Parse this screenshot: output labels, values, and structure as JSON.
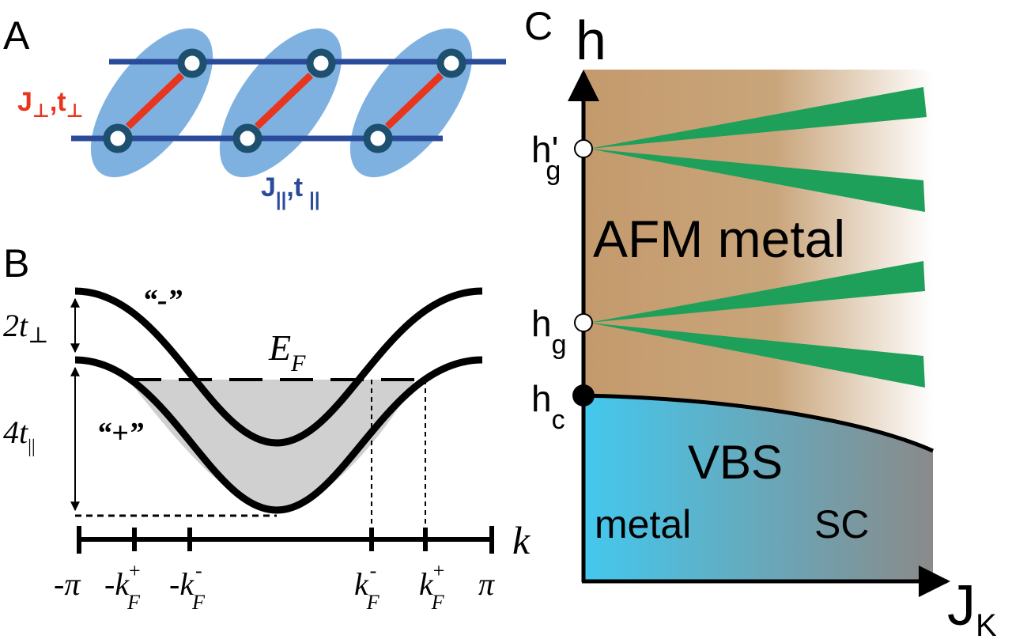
{
  "panels": {
    "a": {
      "label": "A",
      "perp_coupling": "J",
      "perp_coupling_sub": "⊥",
      "perp_hopping": ",t",
      "perp_hopping_sub": "⊥",
      "par_coupling": "J",
      "par_coupling_sub": "||",
      "par_hopping": ",t",
      "par_hopping_sub": "||",
      "colors": {
        "perp": "#e8351e",
        "par": "#2a4a9a",
        "ellipse": "#7fb1e0",
        "site": "#1d4f6e"
      }
    },
    "b": {
      "label": "B",
      "minus_band": "“-”",
      "plus_band": "“+”",
      "fermi_E": "E",
      "fermi_sub": "F",
      "gap": "2t",
      "gap_sub": "⊥",
      "width": "4t",
      "width_sub": "||",
      "axis_var": "k",
      "ticks": {
        "neg_pi": "-π",
        "neg_kfp": "-k",
        "neg_kfp_sub": "F",
        "neg_kfp_sup": "+",
        "neg_kfm": "-k",
        "neg_kfm_sub": "F",
        "neg_kfm_sup": "-",
        "kfm": "k",
        "kfm_sub": "F",
        "kfm_sup": "-",
        "kfp": "k",
        "kfp_sub": "F",
        "kfp_sup": "+",
        "pi": "π"
      }
    },
    "c": {
      "label": "C",
      "y_axis": "h",
      "x_axis": "J",
      "x_axis_sub": "K",
      "hg_prime": "h'",
      "hg_prime_sub": "g",
      "hg": "h",
      "hg_sub": "g",
      "hc": "h",
      "hc_sub": "c",
      "afm": "AFM metal",
      "vbs": "VBS",
      "metal": "metal",
      "sc": "SC",
      "colors": {
        "afm": "#c49a6c",
        "vbs": "#43c8ee",
        "sc": "#8a8a8a",
        "wedge": "#1ea05a"
      }
    }
  }
}
